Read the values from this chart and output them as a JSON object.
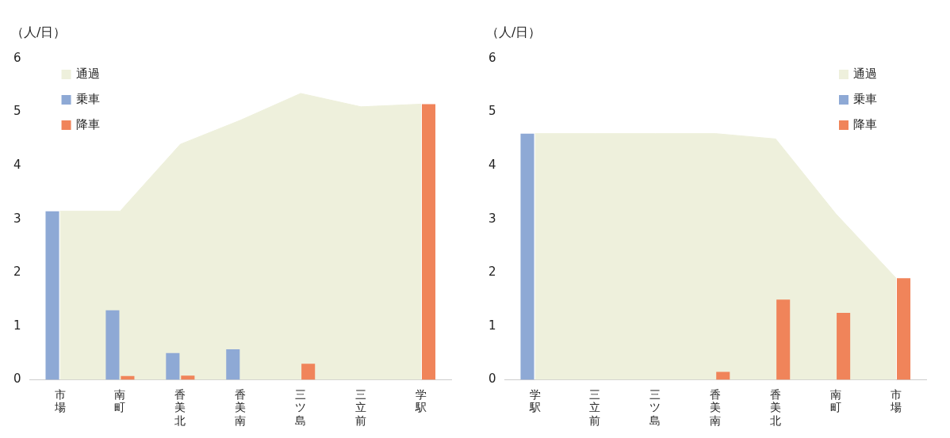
{
  "chart_data": [
    {
      "type": "bar",
      "ylabel": "（人/日）",
      "categories": [
        "市場",
        "南町",
        "香美北",
        "香美南",
        "三ツ島",
        "三立前",
        "学駅"
      ],
      "ylim": [
        0,
        6
      ],
      "yticks": [
        0,
        1,
        2,
        3,
        4,
        5,
        6
      ],
      "legend": "top left",
      "series": [
        {
          "name": "通過",
          "type": "area",
          "color": "#eef0dc",
          "values": [
            3.15,
            3.15,
            4.4,
            4.85,
            5.35,
            5.1,
            5.15
          ]
        },
        {
          "name": "乗車",
          "color": "#8ea9d5",
          "values": [
            3.15,
            1.3,
            0.5,
            0.57,
            0,
            0,
            0
          ]
        },
        {
          "name": "降車",
          "color": "#f0845a",
          "values": [
            0,
            0.07,
            0.08,
            0,
            0.3,
            0,
            5.15
          ]
        }
      ]
    },
    {
      "type": "bar",
      "ylabel": "（人/日）",
      "categories": [
        "学駅",
        "三立前",
        "三ツ島",
        "香美南",
        "香美北",
        "南町",
        "市場"
      ],
      "ylim": [
        0,
        6
      ],
      "yticks": [
        0,
        1,
        2,
        3,
        4,
        5,
        6
      ],
      "legend": "top right",
      "series": [
        {
          "name": "通過",
          "type": "area",
          "color": "#eef0dc",
          "values": [
            4.6,
            4.6,
            4.6,
            4.6,
            4.5,
            3.1,
            1.9
          ]
        },
        {
          "name": "乗車",
          "color": "#8ea9d5",
          "values": [
            4.6,
            0,
            0,
            0,
            0,
            0,
            0
          ]
        },
        {
          "name": "降車",
          "color": "#f0845a",
          "values": [
            0,
            0,
            0,
            0.15,
            1.5,
            1.25,
            1.9
          ]
        }
      ]
    }
  ]
}
